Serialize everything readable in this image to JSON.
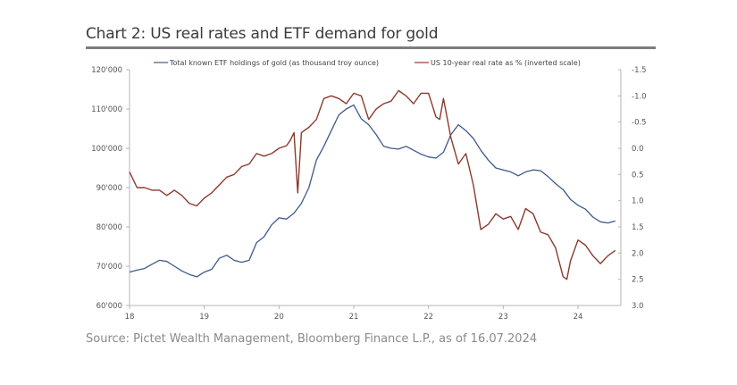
{
  "header": {
    "title": "Chart 2: US real rates and ETF demand for gold"
  },
  "footer": {
    "source": "Source: Pictet Wealth Management, Bloomberg Finance L.P., as of 16.07.2024"
  },
  "chart_data": {
    "type": "line",
    "title": "Chart 2: US real rates and ETF demand for gold",
    "xlabel": "",
    "ylabel": "",
    "y2label": "",
    "x_ticks": [
      "18",
      "19",
      "20",
      "21",
      "22",
      "23",
      "24"
    ],
    "x_range": [
      18.0,
      24.6
    ],
    "y_left": {
      "range": [
        60000,
        120000
      ],
      "ticks": [
        60000,
        70000,
        80000,
        90000,
        100000,
        110000,
        120000
      ],
      "tick_labels": [
        "60'000",
        "70'000",
        "80'000",
        "90'000",
        "100'000",
        "110'000",
        "120'000"
      ]
    },
    "y_right": {
      "range": [
        -1.5,
        3.0
      ],
      "inverted": true,
      "ticks": [
        -1.5,
        -1.0,
        -0.5,
        0.0,
        0.5,
        1.0,
        1.5,
        2.0,
        2.5,
        3.0
      ],
      "tick_labels": [
        "-1.5",
        "-1.0",
        "-0.5",
        "0.0",
        "0.5",
        "1.0",
        "1.5",
        "2.0",
        "2.5",
        "3.0"
      ]
    },
    "grid": false,
    "legend_position": "top",
    "series": [
      {
        "name": "Total known ETF holdings of gold (as thousand troy ounce)",
        "axis": "left",
        "color": "#3d5a8a",
        "x": [
          18.0,
          18.1,
          18.2,
          18.3,
          18.4,
          18.5,
          18.6,
          18.7,
          18.8,
          18.9,
          19.0,
          19.1,
          19.2,
          19.3,
          19.4,
          19.5,
          19.6,
          19.7,
          19.8,
          19.9,
          20.0,
          20.1,
          20.2,
          20.3,
          20.4,
          20.5,
          20.6,
          20.7,
          20.8,
          20.9,
          21.0,
          21.1,
          21.2,
          21.3,
          21.4,
          21.5,
          21.6,
          21.7,
          21.8,
          21.9,
          22.0,
          22.1,
          22.2,
          22.3,
          22.4,
          22.5,
          22.6,
          22.7,
          22.8,
          22.9,
          23.0,
          23.1,
          23.2,
          23.3,
          23.4,
          23.5,
          23.6,
          23.7,
          23.8,
          23.9,
          24.0,
          24.1,
          24.2,
          24.3,
          24.4,
          24.5
        ],
        "values": [
          68500,
          69000,
          69400,
          70500,
          71500,
          71200,
          70000,
          68800,
          67900,
          67300,
          68500,
          69200,
          72000,
          72800,
          71500,
          71000,
          71500,
          76000,
          77500,
          80500,
          82300,
          82000,
          83500,
          86000,
          90000,
          97000,
          100500,
          104500,
          108500,
          110000,
          111000,
          107500,
          106000,
          103500,
          100500,
          100000,
          99800,
          100500,
          99500,
          98500,
          97800,
          97500,
          99000,
          103500,
          106000,
          104500,
          102500,
          99500,
          97000,
          95000,
          94500,
          94000,
          93000,
          94000,
          94500,
          94300,
          92800,
          91000,
          89500,
          87000,
          85500,
          84500,
          82500,
          81300,
          81000,
          81500
        ]
      },
      {
        "name": "US 10-year real rate as % (inverted scale)",
        "axis": "right",
        "color": "#8b3a2f",
        "x": [
          18.0,
          18.1,
          18.2,
          18.3,
          18.4,
          18.5,
          18.6,
          18.7,
          18.8,
          18.9,
          19.0,
          19.1,
          19.2,
          19.3,
          19.4,
          19.5,
          19.6,
          19.7,
          19.8,
          19.9,
          20.0,
          20.1,
          20.15,
          20.2,
          20.25,
          20.3,
          20.4,
          20.5,
          20.6,
          20.7,
          20.8,
          20.9,
          21.0,
          21.1,
          21.2,
          21.3,
          21.4,
          21.5,
          21.6,
          21.7,
          21.8,
          21.9,
          22.0,
          22.1,
          22.15,
          22.2,
          22.3,
          22.4,
          22.5,
          22.6,
          22.7,
          22.8,
          22.9,
          23.0,
          23.1,
          23.2,
          23.3,
          23.4,
          23.5,
          23.6,
          23.7,
          23.8,
          23.85,
          23.9,
          24.0,
          24.1,
          24.2,
          24.3,
          24.4,
          24.5
        ],
        "values": [
          0.45,
          0.75,
          0.75,
          0.8,
          0.8,
          0.9,
          0.8,
          0.9,
          1.05,
          1.1,
          0.95,
          0.85,
          0.7,
          0.55,
          0.5,
          0.35,
          0.3,
          0.1,
          0.15,
          0.1,
          0.0,
          -0.05,
          -0.15,
          -0.3,
          0.85,
          -0.3,
          -0.4,
          -0.55,
          -0.95,
          -1.0,
          -0.95,
          -0.85,
          -1.05,
          -1.0,
          -0.55,
          -0.75,
          -0.85,
          -0.9,
          -1.1,
          -1.0,
          -0.85,
          -1.05,
          -1.05,
          -0.6,
          -0.55,
          -0.95,
          -0.2,
          0.3,
          0.1,
          0.7,
          1.55,
          1.45,
          1.25,
          1.35,
          1.3,
          1.55,
          1.15,
          1.25,
          1.6,
          1.65,
          1.9,
          2.45,
          2.5,
          2.15,
          1.75,
          1.85,
          2.05,
          2.2,
          2.05,
          1.95
        ]
      }
    ]
  }
}
